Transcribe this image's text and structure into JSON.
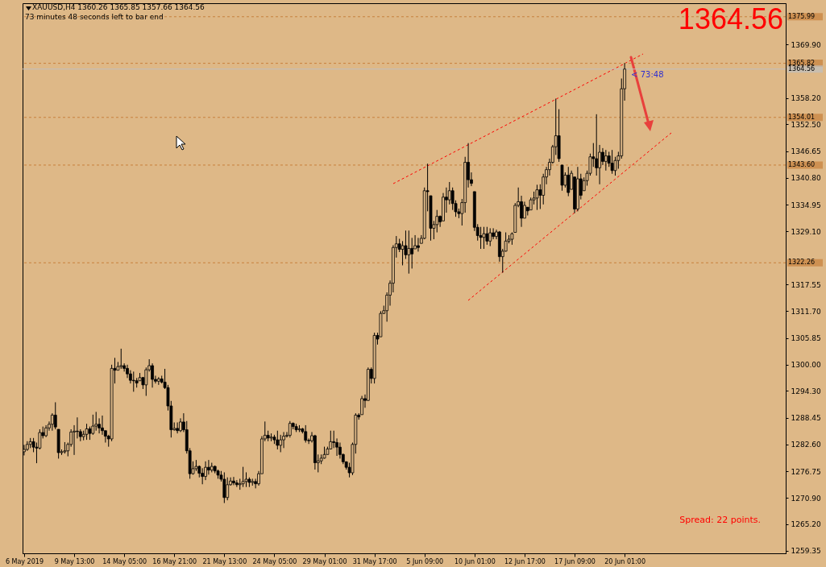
{
  "chart_data": {
    "type": "candlestick",
    "title": "XAUUSD,H4  1360.26 1365.85 1357.66 1364.56",
    "annotations": [
      "73 minutes 48 seconds left to bar end",
      "1364.56",
      "Spread: 22 points.",
      {
        "text": "< 73:48",
        "x": "20 Jun 01:00",
        "y": 1364.56
      }
    ],
    "categories": [
      "6 May 2019",
      null,
      null,
      null,
      null,
      null,
      null,
      null,
      null,
      null,
      null,
      null,
      null,
      null,
      null,
      null,
      "9 May 13:00",
      null,
      null,
      null,
      null,
      null,
      null,
      null,
      null,
      null,
      null,
      null,
      null,
      null,
      null,
      null,
      "14 May 05:00",
      null,
      null,
      null,
      null,
      null,
      null,
      null,
      null,
      null,
      null,
      null,
      null,
      null,
      null,
      null,
      "16 May 21:00",
      null,
      null,
      null,
      null,
      null,
      null,
      null,
      null,
      null,
      null,
      null,
      null,
      null,
      null,
      null,
      "21 May 13:00",
      null,
      null,
      null,
      null,
      null,
      null,
      null,
      null,
      null,
      null,
      null,
      null,
      null,
      null,
      null,
      "24 May 05:00",
      null,
      null,
      null,
      null,
      null,
      null,
      null,
      null,
      null,
      null,
      null,
      null,
      null,
      null,
      null,
      "29 May 01:00",
      null,
      null,
      null,
      null,
      null,
      null,
      null,
      null,
      null,
      null,
      null,
      null,
      null,
      null,
      null,
      "31 May 17:00",
      null,
      null,
      null,
      null,
      null,
      null,
      null,
      null,
      null,
      null,
      null,
      null,
      null,
      null,
      null,
      "5 Jun 09:00",
      null,
      null,
      null,
      null,
      null,
      null,
      null,
      null,
      null,
      null,
      null,
      null,
      null,
      null,
      null,
      "10 Jun 01:00",
      null,
      null,
      null,
      null,
      null,
      null,
      null,
      null,
      null,
      null,
      null,
      null,
      null,
      null,
      null,
      "12 Jun 17:00",
      null,
      null,
      null,
      null,
      null,
      null,
      null,
      null,
      null,
      null,
      null,
      null,
      null,
      null,
      null,
      "17 Jun 09:00",
      null,
      null,
      null,
      null,
      null,
      null,
      null,
      null,
      null,
      null,
      null,
      null,
      null,
      null,
      null,
      "20 Jun 01:00",
      null,
      null,
      null,
      null,
      null,
      null,
      null,
      null,
      null,
      null,
      null,
      null,
      null,
      null,
      null,
      null,
      null,
      null,
      null,
      null,
      null,
      null,
      null,
      null,
      null,
      null,
      null,
      null,
      null,
      null,
      null,
      null,
      null,
      null,
      null,
      null,
      null,
      null,
      null,
      null,
      null,
      null,
      null,
      null,
      null,
      null,
      null,
      null,
      null,
      null,
      null
    ],
    "ohlc": [
      [
        1281.0,
        1282.5,
        1280.2,
        1281.5
      ],
      [
        1281.5,
        1283.3,
        1281.2,
        1282.6
      ],
      [
        1282.6,
        1284.0,
        1281.8,
        1283.2
      ],
      [
        1283.2,
        1284.0,
        1280.9,
        1282.0
      ],
      [
        1282.0,
        1283.0,
        1278.5,
        1281.8
      ],
      [
        1281.8,
        1285.9,
        1281.5,
        1285.2
      ],
      [
        1285.2,
        1286.5,
        1283.9,
        1284.5
      ],
      [
        1284.5,
        1286.8,
        1284.2,
        1286.2
      ],
      [
        1286.2,
        1287.6,
        1285.6,
        1287.0
      ],
      [
        1287.0,
        1289.4,
        1285.6,
        1289.0
      ],
      [
        1289.0,
        1291.8,
        1285.9,
        1286.4
      ],
      [
        1285.9,
        1285.9,
        1279.5,
        1280.8
      ],
      [
        1280.8,
        1281.5,
        1280.3,
        1281.0
      ],
      [
        1281.0,
        1283.1,
        1280.6,
        1281.2
      ],
      [
        1281.2,
        1283.0,
        1280.0,
        1282.6
      ],
      [
        1282.6,
        1285.9,
        1282.1,
        1285.3
      ],
      [
        1285.3,
        1286.8,
        1280.3,
        1285.5
      ],
      [
        1285.5,
        1288.5,
        1283.9,
        1285.4
      ],
      [
        1285.4,
        1285.9,
        1283.3,
        1284.3
      ],
      [
        1284.3,
        1285.6,
        1283.5,
        1284.8
      ],
      [
        1284.8,
        1287.1,
        1283.6,
        1286.0
      ],
      [
        1286.0,
        1286.5,
        1283.6,
        1285.0
      ],
      [
        1285.0,
        1289.1,
        1284.7,
        1286.6
      ],
      [
        1286.6,
        1289.7,
        1285.6,
        1287.0
      ],
      [
        1287.0,
        1288.3,
        1285.0,
        1286.2
      ],
      [
        1286.2,
        1288.9,
        1284.7,
        1285.6
      ],
      [
        1285.6,
        1285.6,
        1283.0,
        1284.4
      ],
      [
        1284.4,
        1284.7,
        1282.1,
        1283.8
      ],
      [
        1283.8,
        1300.0,
        1283.3,
        1299.2
      ],
      [
        1299.2,
        1301.5,
        1295.9,
        1298.8
      ],
      [
        1298.8,
        1300.6,
        1298.8,
        1299.6
      ],
      [
        1299.6,
        1303.5,
        1299.1,
        1299.8
      ],
      [
        1299.8,
        1300.3,
        1298.5,
        1299.2
      ],
      [
        1299.2,
        1300.0,
        1297.1,
        1298.0
      ],
      [
        1298.0,
        1298.8,
        1295.9,
        1296.6
      ],
      [
        1296.6,
        1298.5,
        1294.1,
        1296.5
      ],
      [
        1296.5,
        1297.1,
        1295.0,
        1296.0
      ],
      [
        1296.5,
        1298.2,
        1296.5,
        1297.2
      ],
      [
        1297.2,
        1297.3,
        1294.7,
        1295.6
      ],
      [
        1295.6,
        1299.4,
        1293.2,
        1298.9
      ],
      [
        1298.9,
        1301.2,
        1298.5,
        1299.8
      ],
      [
        1299.8,
        1300.3,
        1295.0,
        1296.8
      ],
      [
        1296.8,
        1297.6,
        1295.9,
        1296.4
      ],
      [
        1296.4,
        1297.3,
        1295.6,
        1296.9
      ],
      [
        1296.9,
        1297.6,
        1295.9,
        1296.2
      ],
      [
        1296.2,
        1299.1,
        1294.7,
        1295.0
      ],
      [
        1295.0,
        1295.6,
        1290.0,
        1291.0
      ],
      [
        1291.0,
        1292.1,
        1284.1,
        1285.8
      ],
      [
        1285.8,
        1287.4,
        1285.6,
        1286.1
      ],
      [
        1286.1,
        1287.4,
        1285.0,
        1285.6
      ],
      [
        1285.6,
        1288.3,
        1285.3,
        1287.5
      ],
      [
        1287.5,
        1289.4,
        1285.3,
        1285.8
      ],
      [
        1285.8,
        1287.7,
        1280.6,
        1281.2
      ],
      [
        1281.2,
        1281.8,
        1275.1,
        1276.2
      ],
      [
        1276.2,
        1278.9,
        1276.0,
        1277.3
      ],
      [
        1277.3,
        1279.2,
        1276.8,
        1277.8
      ],
      [
        1277.8,
        1278.0,
        1275.4,
        1276.3
      ],
      [
        1276.3,
        1277.4,
        1273.9,
        1275.6
      ],
      [
        1275.6,
        1278.9,
        1274.8,
        1277.6
      ],
      [
        1277.6,
        1279.2,
        1276.0,
        1277.0
      ],
      [
        1277.0,
        1278.6,
        1276.5,
        1277.8
      ],
      [
        1277.8,
        1278.0,
        1276.3,
        1276.8
      ],
      [
        1276.8,
        1277.1,
        1275.1,
        1275.9
      ],
      [
        1275.9,
        1276.8,
        1274.5,
        1275.0
      ],
      [
        1275.0,
        1276.5,
        1269.8,
        1271.0
      ],
      [
        1271.0,
        1275.4,
        1270.4,
        1273.8
      ],
      [
        1273.8,
        1275.4,
        1273.6,
        1274.6
      ],
      [
        1274.6,
        1275.5,
        1273.7,
        1274.2
      ],
      [
        1274.2,
        1274.8,
        1273.3,
        1273.8
      ],
      [
        1273.8,
        1275.1,
        1272.7,
        1274.0
      ],
      [
        1274.0,
        1277.7,
        1273.3,
        1274.5
      ],
      [
        1274.5,
        1276.5,
        1273.3,
        1275.0
      ],
      [
        1275.0,
        1275.4,
        1273.3,
        1274.3
      ],
      [
        1274.3,
        1275.1,
        1273.6,
        1274.5
      ],
      [
        1274.5,
        1275.1,
        1273.0,
        1274.0
      ],
      [
        1274.0,
        1276.8,
        1273.6,
        1276.2
      ],
      [
        1276.2,
        1284.4,
        1276.2,
        1283.8
      ],
      [
        1283.8,
        1287.6,
        1283.3,
        1284.6
      ],
      [
        1284.6,
        1285.6,
        1283.3,
        1284.0
      ],
      [
        1284.0,
        1285.0,
        1283.3,
        1284.2
      ],
      [
        1284.2,
        1284.7,
        1282.7,
        1283.6
      ],
      [
        1283.6,
        1285.6,
        1281.5,
        1282.4
      ],
      [
        1282.4,
        1284.7,
        1280.9,
        1283.6
      ],
      [
        1283.6,
        1285.3,
        1281.8,
        1284.4
      ],
      [
        1284.4,
        1285.3,
        1284.1,
        1284.6
      ],
      [
        1284.6,
        1287.7,
        1284.1,
        1287.2
      ],
      [
        1287.2,
        1287.4,
        1285.9,
        1286.5
      ],
      [
        1286.5,
        1287.1,
        1285.3,
        1285.8
      ],
      [
        1285.8,
        1286.8,
        1285.3,
        1286.0
      ],
      [
        1286.0,
        1286.2,
        1285.0,
        1285.4
      ],
      [
        1285.4,
        1286.8,
        1283.0,
        1283.5
      ],
      [
        1283.5,
        1283.9,
        1282.7,
        1283.4
      ],
      [
        1283.4,
        1285.3,
        1283.0,
        1284.5
      ],
      [
        1284.5,
        1284.7,
        1277.1,
        1278.6
      ],
      [
        1278.6,
        1280.4,
        1276.5,
        1279.0
      ],
      [
        1279.0,
        1280.4,
        1278.3,
        1279.6
      ],
      [
        1279.6,
        1282.1,
        1279.5,
        1280.4
      ],
      [
        1280.4,
        1282.1,
        1280.4,
        1281.6
      ],
      [
        1281.6,
        1285.6,
        1281.5,
        1283.2
      ],
      [
        1283.2,
        1285.6,
        1281.8,
        1283.0
      ],
      [
        1283.0,
        1283.9,
        1280.1,
        1282.0
      ],
      [
        1282.0,
        1283.0,
        1279.5,
        1280.4
      ],
      [
        1280.4,
        1280.6,
        1278.3,
        1278.8
      ],
      [
        1278.8,
        1278.9,
        1277.1,
        1277.6
      ],
      [
        1277.6,
        1278.6,
        1275.4,
        1276.4
      ],
      [
        1276.4,
        1283.0,
        1275.9,
        1282.6
      ],
      [
        1282.6,
        1289.4,
        1280.6,
        1289.0
      ],
      [
        1289.0,
        1289.4,
        1288.0,
        1288.6
      ],
      [
        1289.1,
        1293.2,
        1289.1,
        1292.6
      ],
      [
        1292.6,
        1293.5,
        1290.6,
        1292.2
      ],
      [
        1292.2,
        1299.4,
        1292.1,
        1299.0
      ],
      [
        1299.0,
        1299.4,
        1295.9,
        1297.0
      ],
      [
        1297.0,
        1307.0,
        1295.9,
        1306.4
      ],
      [
        1306.4,
        1307.0,
        1304.4,
        1305.6
      ],
      [
        1306.1,
        1311.7,
        1306.1,
        1311.2
      ],
      [
        1311.2,
        1312.9,
        1311.1,
        1311.8
      ],
      [
        1311.8,
        1315.8,
        1309.4,
        1315.2
      ],
      [
        1315.2,
        1318.4,
        1312.9,
        1317.8
      ],
      [
        1317.8,
        1326.1,
        1315.8,
        1325.6
      ],
      [
        1325.6,
        1328.1,
        1323.4,
        1326.4
      ],
      [
        1326.4,
        1327.5,
        1324.6,
        1325.2
      ],
      [
        1325.2,
        1327.0,
        1321.7,
        1326.0
      ],
      [
        1326.0,
        1329.3,
        1323.1,
        1324.0
      ],
      [
        1324.0,
        1329.3,
        1319.9,
        1325.4
      ],
      [
        1325.4,
        1327.7,
        1321.0,
        1324.2
      ],
      [
        1325.3,
        1328.3,
        1325.3,
        1326.0
      ],
      [
        1326.0,
        1327.7,
        1324.7,
        1325.6
      ],
      [
        1326.5,
        1328.3,
        1326.5,
        1327.6
      ],
      [
        1327.6,
        1338.7,
        1327.4,
        1338.0
      ],
      [
        1338.0,
        1343.9,
        1333.5,
        1337.8
      ],
      [
        1336.9,
        1336.9,
        1327.1,
        1329.8
      ],
      [
        1329.8,
        1331.4,
        1327.4,
        1330.6
      ],
      [
        1330.6,
        1333.8,
        1328.9,
        1332.4
      ],
      [
        1332.4,
        1332.6,
        1330.1,
        1331.2
      ],
      [
        1331.4,
        1337.5,
        1331.4,
        1336.6
      ],
      [
        1336.6,
        1338.7,
        1333.2,
        1336.0
      ],
      [
        1336.0,
        1339.9,
        1335.0,
        1338.0
      ],
      [
        1338.0,
        1338.7,
        1333.8,
        1335.2
      ],
      [
        1335.2,
        1335.9,
        1332.3,
        1333.4
      ],
      [
        1333.4,
        1334.1,
        1332.0,
        1333.0
      ],
      [
        1333.0,
        1336.2,
        1330.4,
        1335.4
      ],
      [
        1335.4,
        1345.4,
        1333.2,
        1344.2
      ],
      [
        1344.2,
        1348.4,
        1338.7,
        1340.4
      ],
      [
        1340.4,
        1342.0,
        1339.0,
        1339.6
      ],
      [
        1337.8,
        1337.8,
        1329.2,
        1330.0
      ],
      [
        1330.0,
        1330.7,
        1327.1,
        1328.2
      ],
      [
        1328.2,
        1330.1,
        1325.3,
        1327.8
      ],
      [
        1327.8,
        1330.1,
        1325.3,
        1328.6
      ],
      [
        1328.6,
        1330.1,
        1326.2,
        1327.0
      ],
      [
        1327.0,
        1329.8,
        1325.9,
        1328.8
      ],
      [
        1328.8,
        1329.8,
        1327.4,
        1328.0
      ],
      [
        1328.0,
        1329.5,
        1327.4,
        1329.0
      ],
      [
        1329.0,
        1329.2,
        1322.5,
        1323.6
      ],
      [
        1323.6,
        1325.3,
        1320.1,
        1324.8
      ],
      [
        1324.8,
        1328.9,
        1324.7,
        1327.0
      ],
      [
        1327.0,
        1328.3,
        1326.5,
        1327.4
      ],
      [
        1327.4,
        1328.9,
        1326.2,
        1328.6
      ],
      [
        1328.9,
        1335.3,
        1328.9,
        1334.8
      ],
      [
        1334.8,
        1338.7,
        1334.4,
        1335.6
      ],
      [
        1335.6,
        1336.9,
        1330.1,
        1332.0
      ],
      [
        1332.0,
        1335.6,
        1332.0,
        1334.8
      ],
      [
        1334.4,
        1334.4,
        1332.6,
        1333.6
      ],
      [
        1333.8,
        1336.5,
        1333.8,
        1336.0
      ],
      [
        1336.0,
        1337.8,
        1335.0,
        1336.4
      ],
      [
        1336.4,
        1339.3,
        1333.8,
        1338.2
      ],
      [
        1338.2,
        1339.4,
        1334.0,
        1337.0
      ],
      [
        1337.0,
        1341.7,
        1335.0,
        1341.0
      ],
      [
        1341.0,
        1343.2,
        1339.4,
        1342.6
      ],
      [
        1342.6,
        1345.0,
        1341.3,
        1344.2
      ],
      [
        1344.2,
        1348.0,
        1343.9,
        1347.6
      ],
      [
        1347.6,
        1358.1,
        1345.8,
        1350.0
      ],
      [
        1350.0,
        1355.8,
        1344.3,
        1345.0
      ],
      [
        1343.6,
        1343.6,
        1338.0,
        1339.2
      ],
      [
        1339.2,
        1342.0,
        1338.7,
        1341.4
      ],
      [
        1341.4,
        1343.2,
        1336.8,
        1337.6
      ],
      [
        1338.3,
        1342.4,
        1338.3,
        1341.8
      ],
      [
        1341.0,
        1341.0,
        1333.1,
        1334.0
      ],
      [
        1334.0,
        1343.2,
        1333.5,
        1340.6
      ],
      [
        1340.6,
        1341.7,
        1336.1,
        1337.0
      ],
      [
        1338.0,
        1340.9,
        1338.0,
        1340.2
      ],
      [
        1340.2,
        1342.4,
        1339.1,
        1341.8
      ],
      [
        1341.8,
        1346.1,
        1341.3,
        1345.4
      ],
      [
        1345.4,
        1348.4,
        1343.2,
        1345.0
      ],
      [
        1345.0,
        1354.7,
        1341.3,
        1343.0
      ],
      [
        1343.0,
        1348.0,
        1339.4,
        1346.4
      ],
      [
        1346.4,
        1347.3,
        1343.6,
        1344.4
      ],
      [
        1344.4,
        1346.9,
        1342.4,
        1345.6
      ],
      [
        1345.6,
        1346.5,
        1343.2,
        1344.0
      ],
      [
        1344.0,
        1346.9,
        1341.7,
        1342.4
      ],
      [
        1342.4,
        1345.4,
        1341.3,
        1344.6
      ],
      [
        1344.6,
        1346.5,
        1342.8,
        1345.6
      ],
      [
        1345.6,
        1362.5,
        1345.0,
        1360.26
      ],
      [
        1360.26,
        1365.85,
        1357.66,
        1364.56
      ],
      null,
      null,
      null,
      null,
      null,
      null,
      null,
      null,
      null,
      null,
      null,
      null,
      null,
      null,
      null,
      null,
      null,
      null,
      null,
      null,
      null,
      null,
      null,
      null,
      null,
      null,
      null,
      null,
      null,
      null,
      null,
      null,
      null,
      null,
      null,
      null,
      null,
      null,
      null,
      null,
      null,
      null,
      null,
      null,
      null,
      null,
      null,
      null,
      null,
      null,
      null
    ],
    "color": "#000000",
    "ref_lines": [
      {
        "axis": "y",
        "value": 1375.99,
        "label": "1375.99",
        "color": "#c8803c",
        "line_style": "dashed"
      },
      {
        "axis": "y",
        "value": 1365.82,
        "label": "1365.82",
        "color": "#c8803c",
        "line_style": "dashed"
      },
      {
        "axis": "y",
        "value": 1364.56,
        "label": "1364.56",
        "color": "#c0c0c0",
        "line_style": "solid"
      },
      {
        "axis": "y",
        "value": 1354.01,
        "label": "1354.01",
        "color": "#c8803c",
        "line_style": "dashed"
      },
      {
        "axis": "y",
        "value": 1343.6,
        "label": "1343.60",
        "color": "#c8803c",
        "line_style": "dashed"
      },
      {
        "axis": "y",
        "value": 1322.26,
        "label": "1322.26",
        "color": "#c8803c",
        "line_style": "dashed"
      }
    ],
    "ylim": [
      1258.82,
      1378.94
    ],
    "yticks": [
      1259.35,
      {
        "value": 1265.2,
        "label": "1265.20"
      },
      {
        "value": 1270.9,
        "label": "1270.90"
      },
      1276.75,
      {
        "value": 1282.6,
        "label": "1282.60"
      },
      1288.45,
      {
        "value": 1294.3,
        "label": "1294.30"
      },
      {
        "value": 1300,
        "label": "1300.00"
      },
      1305.85,
      {
        "value": 1311.7,
        "label": "1311.70"
      },
      1317.55,
      {
        "value": 1329.1,
        "label": "1329.10"
      },
      1334.95,
      {
        "value": 1340.8,
        "label": "1340.80"
      },
      1346.65,
      {
        "value": 1352.5,
        "label": "1352.50"
      },
      {
        "value": 1358.2,
        "label": "1358.20"
      },
      {
        "value": 1369.9,
        "label": "1369.90"
      }
    ],
    "grid": false
  }
}
